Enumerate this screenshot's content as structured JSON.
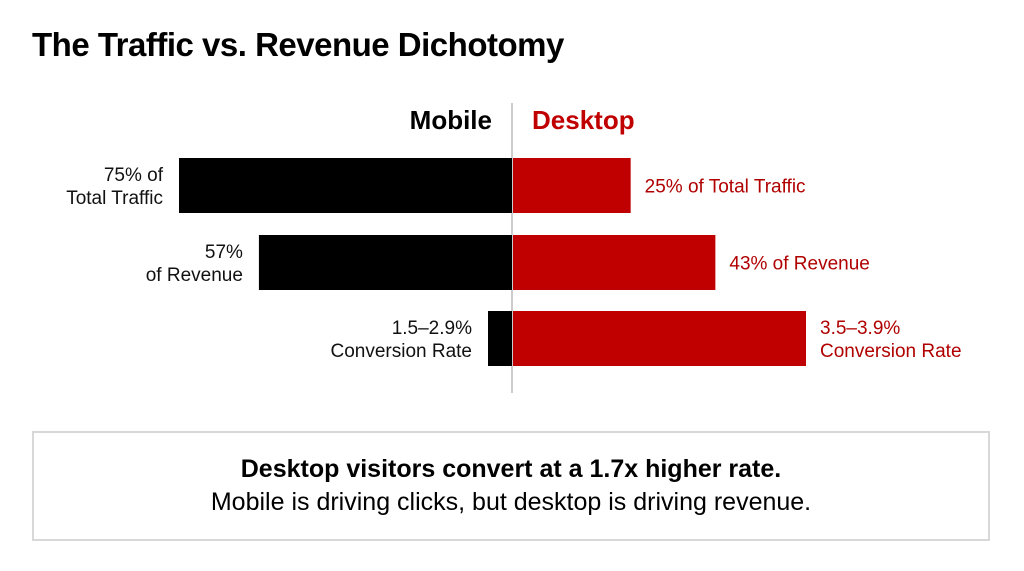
{
  "title": "The Traffic vs. Revenue Dichotomy",
  "chart_data": {
    "type": "bar",
    "orientation": "horizontal-diverging",
    "series": [
      {
        "name": "Mobile",
        "color": "#000000"
      },
      {
        "name": "Desktop",
        "color": "#c00000"
      }
    ],
    "rows": [
      {
        "metric": "Total Traffic",
        "mobile": 75,
        "desktop": 25,
        "unit": "%",
        "mobile_label": [
          "75% of",
          "Total Traffic"
        ],
        "desktop_label": [
          "25% of Total Traffic"
        ]
      },
      {
        "metric": "Revenue",
        "mobile": 57,
        "desktop": 43,
        "unit": "%",
        "mobile_label": [
          "57%",
          "of Revenue"
        ],
        "desktop_label": [
          "43% of Revenue"
        ]
      },
      {
        "metric": "Conversion Rate",
        "mobile": [
          1.5,
          2.9
        ],
        "desktop": [
          3.5,
          3.9
        ],
        "unit": "%",
        "mobile_label": [
          "1.5–2.9%",
          "Conversion Rate"
        ],
        "desktop_label": [
          "3.5–3.9%",
          "Conversion Rate"
        ]
      }
    ],
    "grid": false
  },
  "callout": {
    "headline": "Desktop visitors convert at a 1.7x higher rate.",
    "subtext": "Mobile is driving clicks, but desktop is driving revenue."
  }
}
